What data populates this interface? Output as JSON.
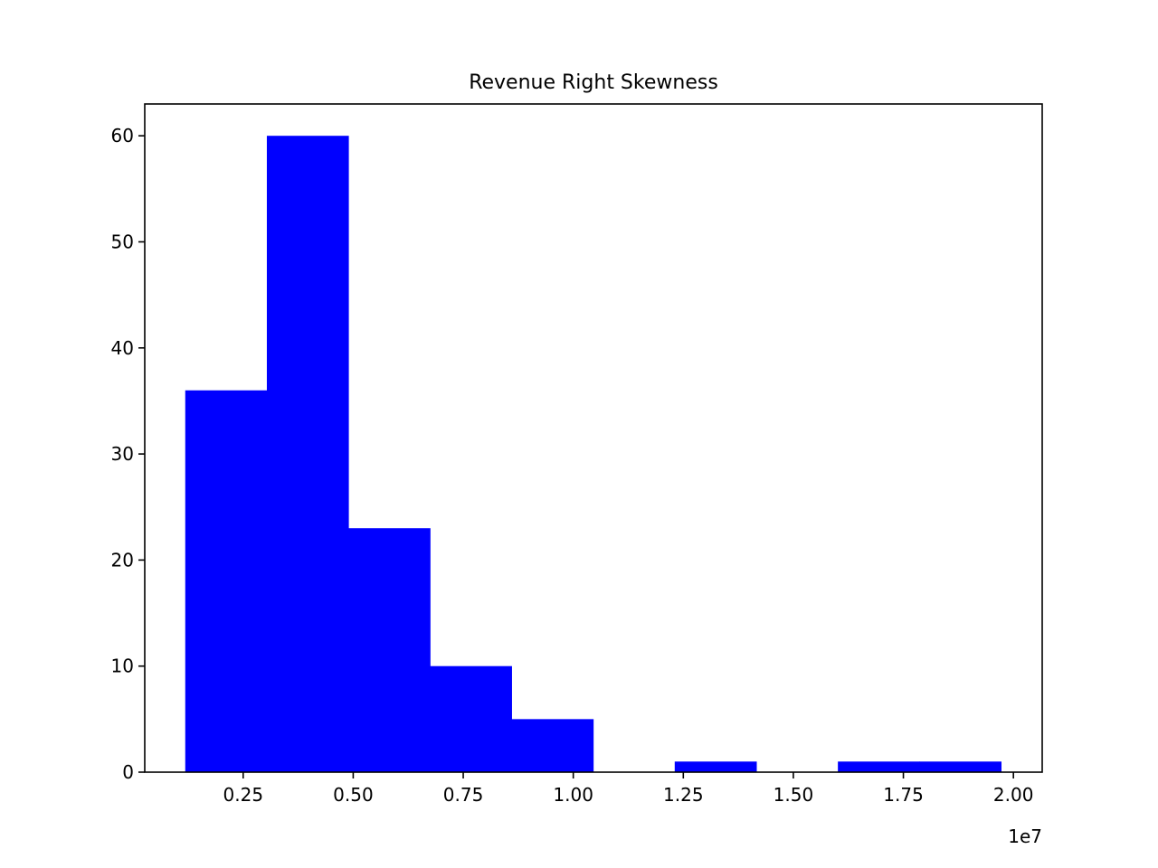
{
  "chart_data": {
    "type": "bar",
    "title": "Revenue Right Skewness",
    "xlabel": "",
    "ylabel": "",
    "x_offset_label": "1e7",
    "x_scale": 10000000,
    "xlim": [
      0.0264,
      2.0654
    ],
    "ylim": [
      0,
      63
    ],
    "bar_color": "#0000ff",
    "grid": false,
    "bins": [
      {
        "x0": 0.1184,
        "x1": 0.3038,
        "count": 36
      },
      {
        "x0": 0.3038,
        "x1": 0.4891,
        "count": 60
      },
      {
        "x0": 0.4891,
        "x1": 0.6745,
        "count": 23
      },
      {
        "x0": 0.6745,
        "x1": 0.8598,
        "count": 10
      },
      {
        "x0": 0.8598,
        "x1": 1.0452,
        "count": 5
      },
      {
        "x0": 1.0452,
        "x1": 1.2305,
        "count": 0
      },
      {
        "x0": 1.2305,
        "x1": 1.4159,
        "count": 1
      },
      {
        "x0": 1.4159,
        "x1": 1.6012,
        "count": 0
      },
      {
        "x0": 1.6012,
        "x1": 1.7866,
        "count": 1
      },
      {
        "x0": 1.7866,
        "x1": 1.9719,
        "count": 1
      }
    ],
    "x_ticks": [
      {
        "value": 0.25,
        "label": "0.25"
      },
      {
        "value": 0.5,
        "label": "0.50"
      },
      {
        "value": 0.75,
        "label": "0.75"
      },
      {
        "value": 1.0,
        "label": "1.00"
      },
      {
        "value": 1.25,
        "label": "1.25"
      },
      {
        "value": 1.5,
        "label": "1.50"
      },
      {
        "value": 1.75,
        "label": "1.75"
      },
      {
        "value": 2.0,
        "label": "2.00"
      }
    ],
    "y_ticks": [
      {
        "value": 0,
        "label": "0"
      },
      {
        "value": 10,
        "label": "10"
      },
      {
        "value": 20,
        "label": "20"
      },
      {
        "value": 30,
        "label": "30"
      },
      {
        "value": 40,
        "label": "40"
      },
      {
        "value": 50,
        "label": "50"
      },
      {
        "value": 60,
        "label": "60"
      }
    ]
  }
}
